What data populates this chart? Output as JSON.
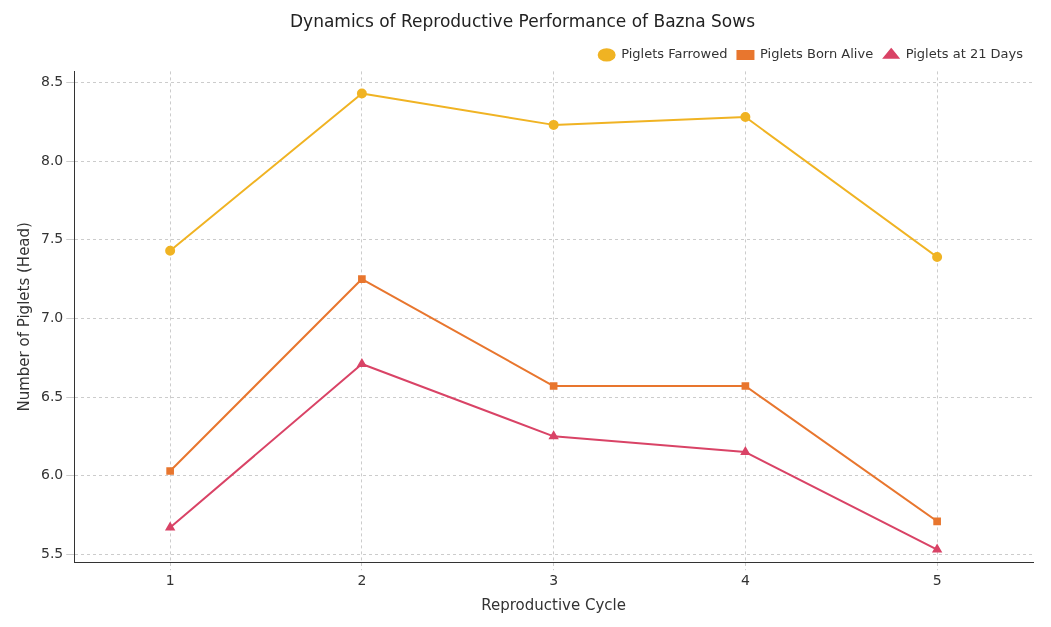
{
  "chart_data": {
    "type": "line",
    "title": "Dynamics of Reproductive Performance of Bazna Sows",
    "xlabel": "Reproductive Cycle",
    "ylabel": "Number of Piglets (Head)",
    "categories": [
      "1",
      "2",
      "3",
      "4",
      "5"
    ],
    "series": [
      {
        "name": "Piglets Farrowed",
        "color": "#f0b323",
        "marker": "circle",
        "values": [
          7.43,
          8.43,
          8.23,
          8.28,
          7.39
        ]
      },
      {
        "name": "Piglets Born Alive",
        "color": "#e8762e",
        "marker": "square",
        "values": [
          6.03,
          7.25,
          6.57,
          6.57,
          5.71
        ]
      },
      {
        "name": "Piglets at 21 Days",
        "color": "#d94366",
        "marker": "triangle",
        "values": [
          5.67,
          6.71,
          6.25,
          6.15,
          5.53
        ]
      }
    ],
    "ylim": [
      5.45,
      8.57
    ],
    "yticks": [
      5.5,
      {
        "value": 6,
        "label": "6.0"
      },
      6.5,
      {
        "value": 7,
        "label": "7.0"
      },
      7.5,
      {
        "value": 8,
        "label": "8.0"
      },
      8.5
    ],
    "grid": true,
    "legend": "top right",
    "line_style": "solid"
  }
}
